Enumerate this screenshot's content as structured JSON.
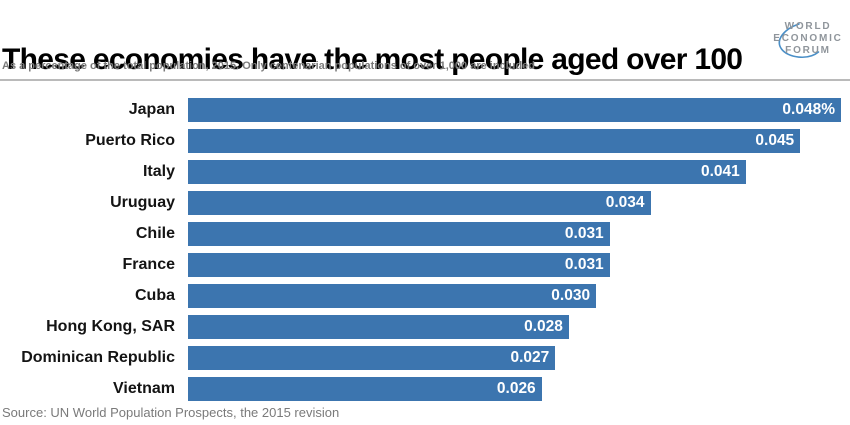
{
  "chart_data": {
    "type": "bar",
    "orientation": "horizontal",
    "title": "These economies have the most people aged over 100",
    "subtitle": "As a percentage of the total population, 2015. Only centenarian populations of over 1,000 are included",
    "source": "Source: UN World Population Prospects, the 2015 revision",
    "categories": [
      "Japan",
      "Puerto Rico",
      "Italy",
      "Uruguay",
      "Chile",
      "France",
      "Cuba",
      "Hong Kong, SAR",
      "Dominican Republic",
      "Vietnam"
    ],
    "values": [
      0.048,
      0.045,
      0.041,
      0.034,
      0.031,
      0.031,
      0.03,
      0.028,
      0.027,
      0.026
    ],
    "value_labels": [
      "0.048%",
      "0.045",
      "0.041",
      "0.034",
      "0.031",
      "0.031",
      "0.030",
      "0.028",
      "0.027",
      "0.026"
    ],
    "xlim": [
      0,
      0.048
    ],
    "grid": false,
    "legend": "none",
    "bar_color": "#3c75af",
    "value_label_color": "#ffffff"
  },
  "logo": {
    "lines": [
      "WORLD",
      "ECONOMIC",
      "FORUM"
    ]
  },
  "colors": {
    "title": "#000000",
    "subtitle": "#7a7a7a",
    "source": "#7a7a7a",
    "divider": "#bababa",
    "category_label": "#141414",
    "logo_text": "#8f959b",
    "logo_arc": "#4a8fc7"
  }
}
